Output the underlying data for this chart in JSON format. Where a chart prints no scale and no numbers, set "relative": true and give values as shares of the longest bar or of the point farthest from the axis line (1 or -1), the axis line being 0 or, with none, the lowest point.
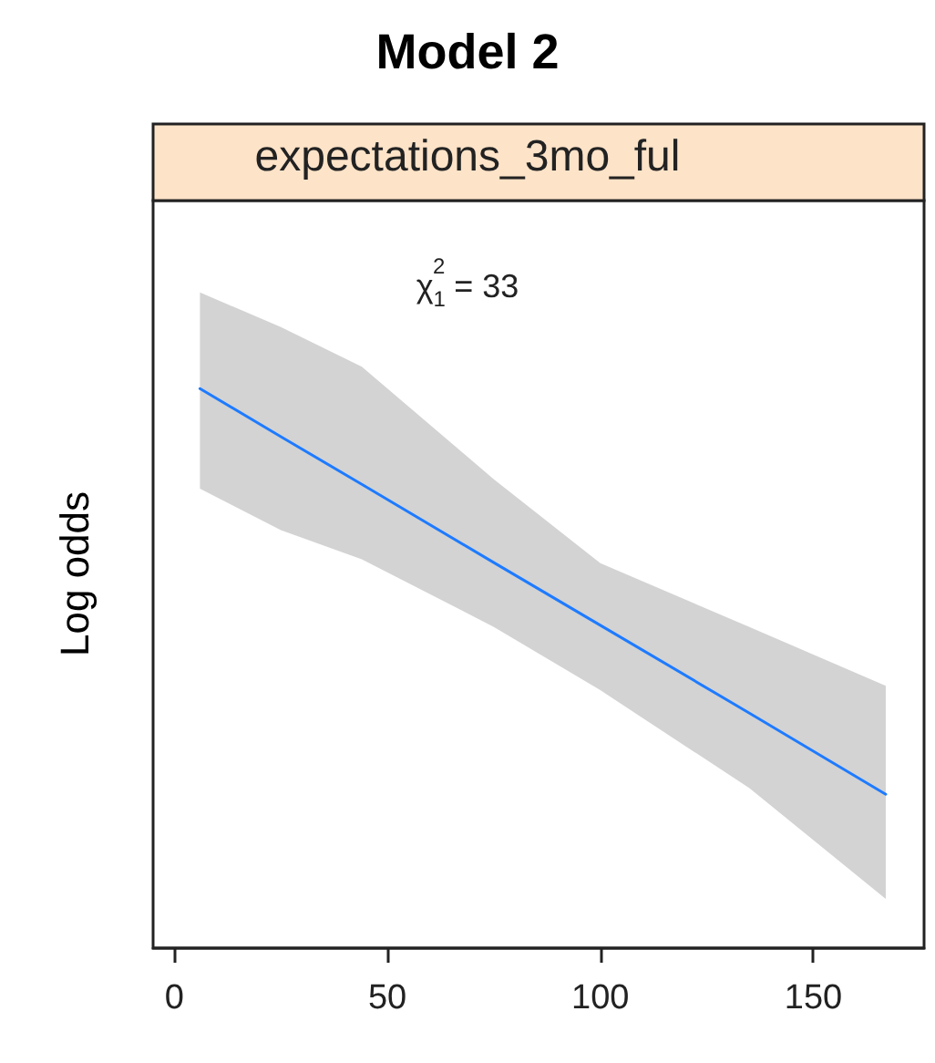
{
  "chart_data": {
    "type": "line",
    "title": "Model 2",
    "subtitle": "expectations_3mo_ful",
    "ylabel": "Log odds",
    "relative": true,
    "annotations": [
      "χ$_{1}$$^{2}$ = 33"
    ],
    "xlim": [
      -5,
      176
    ],
    "xticks": [
      0,
      50,
      100,
      150
    ],
    "grid": false,
    "marker": "none",
    "line_style": "solid",
    "series": [
      {
        "color": "#1e7bff",
        "x": [
          6,
          25,
          44,
          75,
          100,
          135,
          167
        ],
        "values": [
          1.0,
          0.914,
          0.829,
          0.689,
          0.577,
          0.42,
          0.275
        ],
        "lower": [
          0.821,
          0.747,
          0.695,
          0.574,
          0.461,
          0.286,
          0.088
        ],
        "upper": [
          1.172,
          1.11,
          1.039,
          0.838,
          0.688,
          0.574,
          0.469
        ]
      }
    ]
  }
}
